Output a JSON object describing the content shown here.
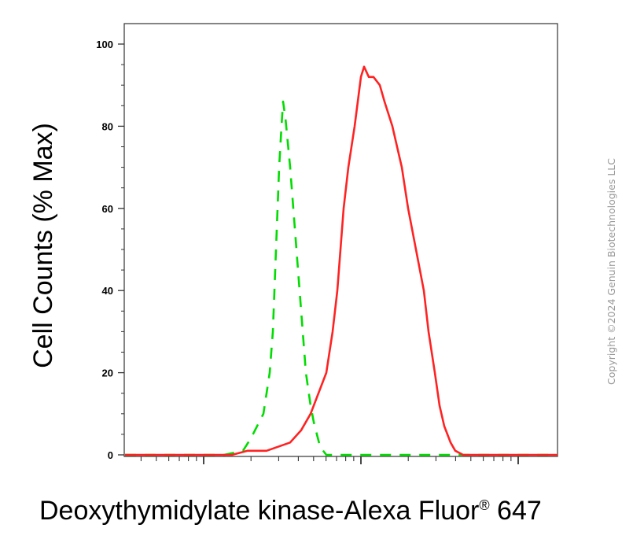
{
  "chart_data": {
    "type": "line",
    "title": "",
    "ylabel": "Cell Counts (% Max)",
    "xlabel": {
      "text": "Deoxythymidylate kinase-Alexa Fluor",
      "superscript": "®",
      "suffix": " 647"
    },
    "x_scale": "log",
    "x_range_decades": [
      -0.5,
      2.25
    ],
    "y_range": [
      0,
      105
    ],
    "y_ticks": [
      0,
      20,
      40,
      60,
      80,
      100
    ],
    "y_tick_labels": [
      "0",
      "20",
      "40",
      "60",
      "80",
      "100"
    ],
    "grid": false,
    "legend": "none",
    "series": [
      {
        "style": "dashed",
        "color": "#00dd00",
        "points": [
          [
            -0.5,
            0
          ],
          [
            0.13,
            0
          ],
          [
            0.25,
            1
          ],
          [
            0.3,
            4
          ],
          [
            0.38,
            10
          ],
          [
            0.42,
            20
          ],
          [
            0.44,
            30
          ],
          [
            0.45,
            40
          ],
          [
            0.46,
            50
          ],
          [
            0.47,
            60
          ],
          [
            0.48,
            70
          ],
          [
            0.495,
            80
          ],
          [
            0.505,
            86
          ],
          [
            0.52,
            82
          ],
          [
            0.55,
            70
          ],
          [
            0.57,
            60
          ],
          [
            0.59,
            50
          ],
          [
            0.61,
            40
          ],
          [
            0.63,
            30
          ],
          [
            0.65,
            20
          ],
          [
            0.68,
            12
          ],
          [
            0.7,
            8
          ],
          [
            0.74,
            2
          ],
          [
            0.78,
            0
          ],
          [
            2.25,
            0
          ]
        ]
      },
      {
        "style": "solid",
        "color": "#ff2222",
        "points": [
          [
            -0.5,
            0
          ],
          [
            0.18,
            0
          ],
          [
            0.28,
            1
          ],
          [
            0.4,
            1
          ],
          [
            0.55,
            3
          ],
          [
            0.62,
            6
          ],
          [
            0.68,
            10
          ],
          [
            0.73,
            15
          ],
          [
            0.78,
            20
          ],
          [
            0.82,
            30
          ],
          [
            0.85,
            40
          ],
          [
            0.87,
            50
          ],
          [
            0.89,
            60
          ],
          [
            0.92,
            70
          ],
          [
            0.96,
            80
          ],
          [
            1.0,
            92
          ],
          [
            1.02,
            94.5
          ],
          [
            1.05,
            92
          ],
          [
            1.08,
            92
          ],
          [
            1.12,
            90
          ],
          [
            1.15,
            86
          ],
          [
            1.2,
            80
          ],
          [
            1.26,
            70
          ],
          [
            1.3,
            60
          ],
          [
            1.35,
            50
          ],
          [
            1.4,
            40
          ],
          [
            1.43,
            30
          ],
          [
            1.47,
            20
          ],
          [
            1.5,
            12
          ],
          [
            1.53,
            7
          ],
          [
            1.57,
            3
          ],
          [
            1.6,
            1
          ],
          [
            1.65,
            0
          ],
          [
            2.25,
            0
          ]
        ]
      }
    ]
  },
  "copyright": "Copyright ©2024 Genuin Biotechnologies LLC"
}
